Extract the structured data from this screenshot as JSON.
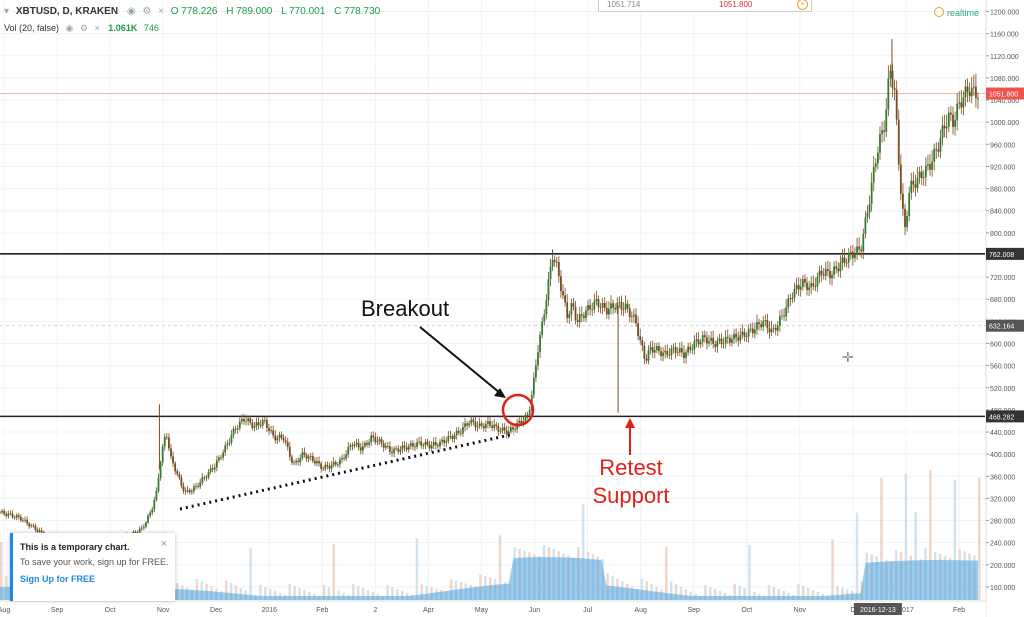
{
  "header": {
    "symbol": "XBTUSD, D, KRAKEN",
    "ohlc": [
      "O 778.226",
      "H 789.000",
      "L 770.001",
      "C 778.730"
    ],
    "volume_label": "Vol (20, false)",
    "volume_value": "1.061K",
    "volume_ma": "746",
    "top_box": [
      "1051.714",
      "1051.800"
    ],
    "realtime": "realtime"
  },
  "annotations": {
    "breakout": "Breakout",
    "retest_line1": "Retest",
    "retest_line2": "Support"
  },
  "toast": {
    "title": "This is a temporary chart.",
    "body": "To save your work, sign up for FREE.",
    "link": "Sign Up for FREE",
    "close": "×"
  },
  "chart_data": {
    "type": "candlestick",
    "x_ticks": [
      "Aug",
      "Sep",
      "Oct",
      "Nov",
      "Dec",
      "2016",
      "Feb",
      "2",
      "Apr",
      "May",
      "Jun",
      "Jul",
      "Aug",
      "Sep",
      "Oct",
      "Nov",
      "D",
      "2017",
      "Feb"
    ],
    "x_ticks_highlight": "2016-12-13",
    "y_ticks": [
      "1200.000",
      "1160.000",
      "1120.000",
      "1080.000",
      "1040.000",
      "1000.000",
      "960.000",
      "920.000",
      "880.000",
      "840.000",
      "800.000",
      "760.000",
      "720.000",
      "680.000",
      "640.000",
      "600.000",
      "560.000",
      "520.000",
      "480.000",
      "440.000",
      "400.000",
      "360.000",
      "320.000",
      "280.000",
      "240.000",
      "200.000",
      "160.000"
    ],
    "ylim": [
      140,
      1210
    ],
    "price_labels": [
      {
        "value": 1051.8,
        "text": "1051.800",
        "color": "#ef5350"
      },
      {
        "value": 762.008,
        "text": "762.008",
        "color": "#333333"
      },
      {
        "value": 632.164,
        "text": "632.164",
        "color": "#555555"
      },
      {
        "value": 468.282,
        "text": "468.282",
        "color": "#333333"
      }
    ],
    "horizontal_lines": [
      762.008,
      468.282
    ],
    "price_path": [
      [
        0,
        295
      ],
      [
        0.02,
        285
      ],
      [
        0.04,
        260
      ],
      [
        0.06,
        240
      ],
      [
        0.08,
        238
      ],
      [
        0.1,
        240
      ],
      [
        0.12,
        245
      ],
      [
        0.135,
        255
      ],
      [
        0.145,
        265
      ],
      [
        0.15,
        280
      ],
      [
        0.155,
        300
      ],
      [
        0.16,
        330
      ],
      [
        0.165,
        400
      ],
      [
        0.17,
        440
      ],
      [
        0.175,
        390
      ],
      [
        0.18,
        370
      ],
      [
        0.185,
        345
      ],
      [
        0.19,
        330
      ],
      [
        0.2,
        340
      ],
      [
        0.21,
        360
      ],
      [
        0.22,
        380
      ],
      [
        0.23,
        410
      ],
      [
        0.24,
        445
      ],
      [
        0.25,
        465
      ],
      [
        0.26,
        450
      ],
      [
        0.27,
        460
      ],
      [
        0.28,
        430
      ],
      [
        0.29,
        430
      ],
      [
        0.3,
        380
      ],
      [
        0.31,
        400
      ],
      [
        0.32,
        390
      ],
      [
        0.33,
        375
      ],
      [
        0.34,
        380
      ],
      [
        0.35,
        390
      ],
      [
        0.36,
        420
      ],
      [
        0.37,
        410
      ],
      [
        0.38,
        430
      ],
      [
        0.39,
        420
      ],
      [
        0.4,
        405
      ],
      [
        0.41,
        410
      ],
      [
        0.42,
        415
      ],
      [
        0.43,
        420
      ],
      [
        0.44,
        415
      ],
      [
        0.45,
        420
      ],
      [
        0.46,
        430
      ],
      [
        0.47,
        440
      ],
      [
        0.48,
        460
      ],
      [
        0.49,
        450
      ],
      [
        0.5,
        455
      ],
      [
        0.51,
        445
      ],
      [
        0.52,
        440
      ],
      [
        0.53,
        455
      ],
      [
        0.54,
        470
      ],
      [
        0.545,
        520
      ],
      [
        0.55,
        590
      ],
      [
        0.555,
        640
      ],
      [
        0.56,
        700
      ],
      [
        0.565,
        760
      ],
      [
        0.57,
        735
      ],
      [
        0.575,
        690
      ],
      [
        0.58,
        650
      ],
      [
        0.585,
        670
      ],
      [
        0.59,
        640
      ],
      [
        0.6,
        660
      ],
      [
        0.61,
        675
      ],
      [
        0.62,
        660
      ],
      [
        0.63,
        670
      ],
      [
        0.64,
        665
      ],
      [
        0.65,
        640
      ],
      [
        0.655,
        600
      ],
      [
        0.66,
        570
      ],
      [
        0.665,
        590
      ],
      [
        0.67,
        590
      ],
      [
        0.68,
        580
      ],
      [
        0.69,
        590
      ],
      [
        0.7,
        580
      ],
      [
        0.71,
        600
      ],
      [
        0.72,
        610
      ],
      [
        0.73,
        600
      ],
      [
        0.74,
        605
      ],
      [
        0.75,
        610
      ],
      [
        0.76,
        615
      ],
      [
        0.77,
        625
      ],
      [
        0.78,
        640
      ],
      [
        0.79,
        620
      ],
      [
        0.8,
        650
      ],
      [
        0.81,
        690
      ],
      [
        0.82,
        710
      ],
      [
        0.83,
        700
      ],
      [
        0.84,
        730
      ],
      [
        0.85,
        725
      ],
      [
        0.86,
        745
      ],
      [
        0.87,
        760
      ],
      [
        0.88,
        770
      ],
      [
        0.885,
        820
      ],
      [
        0.89,
        870
      ],
      [
        0.895,
        930
      ],
      [
        0.9,
        970
      ],
      [
        0.905,
        1000
      ],
      [
        0.91,
        1100
      ],
      [
        0.915,
        1050
      ],
      [
        0.92,
        900
      ],
      [
        0.925,
        800
      ],
      [
        0.93,
        880
      ],
      [
        0.94,
        900
      ],
      [
        0.95,
        920
      ],
      [
        0.96,
        960
      ],
      [
        0.965,
        990
      ],
      [
        0.97,
        1010
      ],
      [
        0.975,
        1000
      ],
      [
        0.98,
        1030
      ],
      [
        0.99,
        1060
      ],
      [
        1,
        1050
      ]
    ],
    "candle_color": "#7a4a1e",
    "volume_color": "#4aa3df",
    "grid": true,
    "annotation_circle_color": "#e0201b"
  }
}
